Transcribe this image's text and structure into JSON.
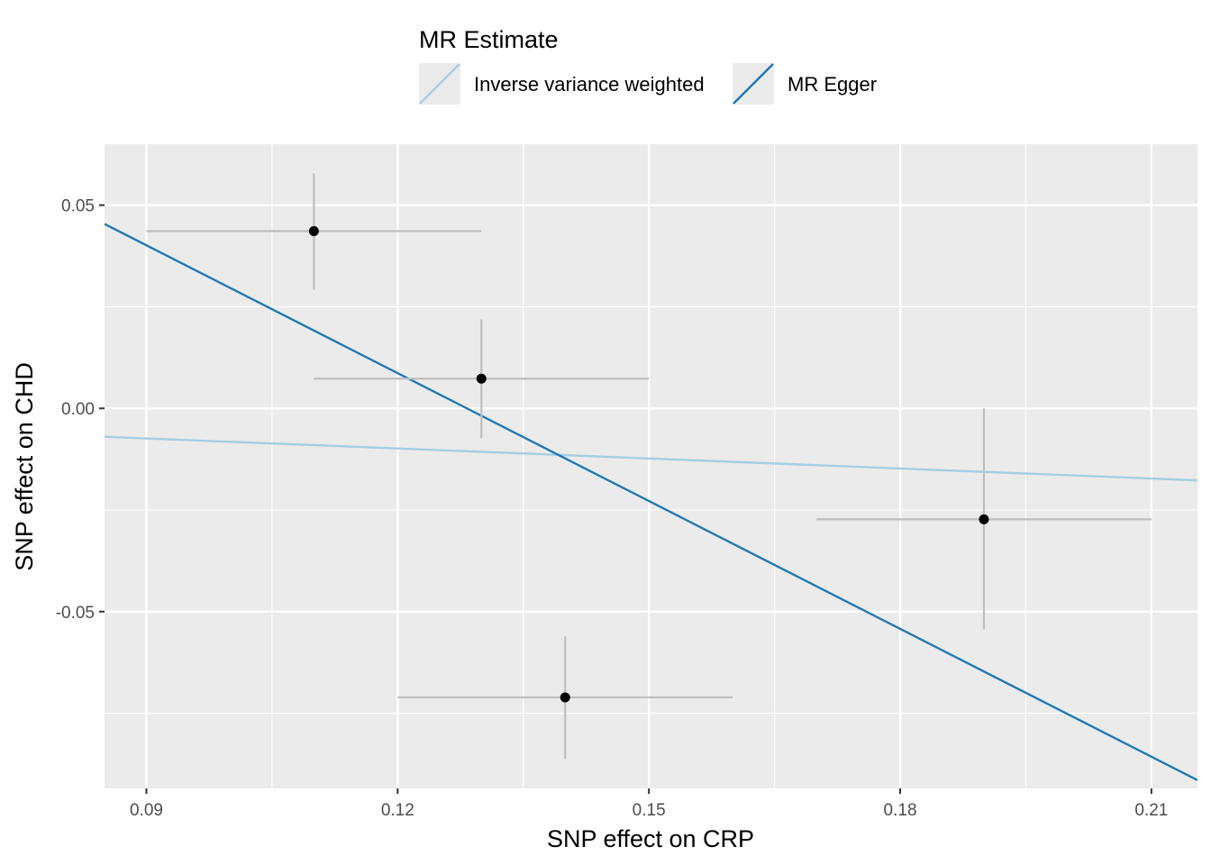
{
  "chart_data": {
    "type": "scatter",
    "xlabel": "SNP effect on CRP",
    "ylabel": "SNP effect on CHD",
    "xlim": [
      0.085,
      0.2155
    ],
    "ylim": [
      -0.0935,
      0.065
    ],
    "x_ticks": [
      0.09,
      0.12,
      0.15,
      0.18,
      0.21
    ],
    "x_tick_labels": [
      "0.09",
      "0.12",
      "0.15",
      "0.18",
      "0.21"
    ],
    "y_ticks": [
      0.05,
      0.0,
      -0.05
    ],
    "y_tick_labels": [
      "0.05",
      "0.00",
      "-0.05"
    ],
    "grid": true,
    "background_color": "#EBEBEB",
    "points": [
      {
        "x": 0.11,
        "y": 0.0436,
        "x_low": 0.09,
        "x_high": 0.13,
        "y_low": 0.0292,
        "y_high": 0.0578
      },
      {
        "x": 0.13,
        "y": 0.0073,
        "x_low": 0.11,
        "x_high": 0.15,
        "y_low": -0.0073,
        "y_high": 0.0219
      },
      {
        "x": 0.14,
        "y": -0.0711,
        "x_low": 0.12,
        "x_high": 0.16,
        "y_low": -0.0862,
        "y_high": -0.0561
      },
      {
        "x": 0.19,
        "y": -0.0273,
        "x_low": 0.17,
        "x_high": 0.21,
        "y_low": -0.0544,
        "y_high": 0.0
      }
    ],
    "point_color": "#000000",
    "errorbar_color": "#BEBEBE",
    "lines": [
      {
        "name": "Inverse variance weighted",
        "intercept": 0.0,
        "slope": -0.0822,
        "color": "#A6CEE3"
      },
      {
        "name": "MR Egger",
        "intercept": 0.1345,
        "slope": -1.0486,
        "color": "#1F78B4"
      }
    ],
    "legend": {
      "title": "MR Estimate",
      "position": "top",
      "entries": [
        {
          "label": "Inverse variance weighted",
          "color": "#A6CEE3"
        },
        {
          "label": "MR Egger",
          "color": "#1F78B4"
        }
      ]
    }
  }
}
